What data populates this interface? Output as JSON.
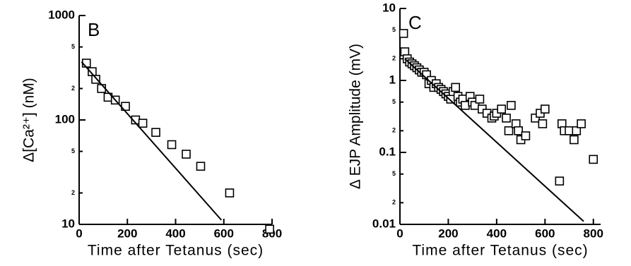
{
  "chart_data": [
    {
      "type": "scatter",
      "panel_label": "B",
      "xlabel": "Time after Tetanus (sec)",
      "ylabel": "Δ[Ca²⁺] (nM)",
      "yscale": "log",
      "xlim": [
        0,
        800
      ],
      "ylim": [
        10,
        1000
      ],
      "xticks": [
        0,
        200,
        400,
        600,
        800
      ],
      "yticks": [
        10,
        {
          "value": 20,
          "label": "2"
        },
        {
          "value": 50,
          "label": "5"
        },
        100,
        {
          "value": 200,
          "label": "2"
        },
        {
          "value": 500,
          "label": "5"
        },
        1000
      ],
      "series": [
        {
          "color": "#000000",
          "marker": "square",
          "x": [
            30,
            54,
            69,
            93,
            120,
            150,
            192,
            234,
            264,
            318,
            384,
            444,
            504,
            624,
            790
          ],
          "values": [
            350,
            290,
            245,
            200,
            165,
            155,
            135,
            100,
            93,
            76,
            58,
            47,
            36,
            20,
            9
          ]
        },
        {
          "color": "#000000",
          "marker": "line",
          "x": [
            10,
            590
          ],
          "values": [
            360,
            11
          ]
        }
      ]
    },
    {
      "type": "scatter",
      "panel_label": "C",
      "xlabel": "Time after Tetanus (sec)",
      "ylabel": "Δ EJP Amplitude (mV)",
      "yscale": "log",
      "xlim": [
        0,
        830
      ],
      "ylim": [
        0.01,
        10
      ],
      "xticks": [
        0,
        200,
        400,
        600,
        800
      ],
      "yticks": [
        {
          "value": 0.01,
          "label": "0.01"
        },
        {
          "value": 0.02,
          "label": "2"
        },
        {
          "value": 0.05,
          "label": "5"
        },
        0.1,
        {
          "value": 0.2,
          "label": "2"
        },
        {
          "value": 0.5,
          "label": "5"
        },
        1,
        {
          "value": 2,
          "label": "2"
        },
        {
          "value": 5,
          "label": "5"
        },
        10
      ],
      "series": [
        {
          "color": "#000000",
          "marker": "square",
          "x": [
            15,
            20,
            30,
            40,
            50,
            60,
            70,
            80,
            90,
            100,
            110,
            120,
            130,
            140,
            150,
            160,
            170,
            180,
            190,
            200,
            210,
            220,
            230,
            240,
            250,
            260,
            270,
            290,
            300,
            310,
            330,
            340,
            360,
            380,
            390,
            400,
            420,
            440,
            450,
            460,
            480,
            490,
            500,
            520,
            560,
            580,
            590,
            600,
            660,
            670,
            680,
            700,
            720,
            730,
            750,
            800
          ],
          "values": [
            4.5,
            2.5,
            2.0,
            1.8,
            1.7,
            1.6,
            1.5,
            1.4,
            1.3,
            1.3,
            1.2,
            0.9,
            1.0,
            0.8,
            0.9,
            0.8,
            0.75,
            0.7,
            0.65,
            0.6,
            0.55,
            0.7,
            0.8,
            0.6,
            0.5,
            0.55,
            0.45,
            0.6,
            0.5,
            0.45,
            0.55,
            0.4,
            0.35,
            0.3,
            0.32,
            0.35,
            0.4,
            0.3,
            0.2,
            0.45,
            0.25,
            0.2,
            0.15,
            0.17,
            0.3,
            0.35,
            0.25,
            0.4,
            0.04,
            0.25,
            0.2,
            0.2,
            0.15,
            0.2,
            0.25,
            0.08
          ]
        },
        {
          "color": "#000000",
          "marker": "line",
          "x": [
            20,
            760
          ],
          "values": [
            2.0,
            0.011
          ]
        }
      ]
    }
  ]
}
